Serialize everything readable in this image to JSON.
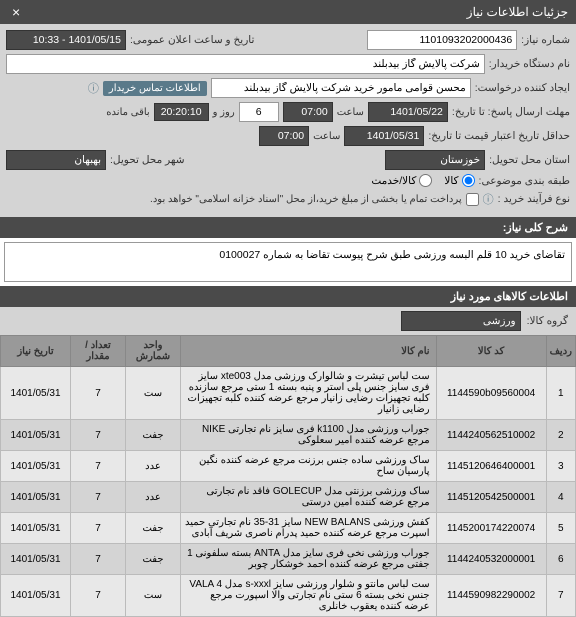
{
  "header": {
    "title": "جزئیات اطلاعات نیاز",
    "close": "×"
  },
  "fields": {
    "need_number_label": "شماره نیاز:",
    "need_number": "1101093202000436",
    "public_announce_label": "تاریخ و ساعت اعلان عمومی:",
    "public_announce": "1401/05/15 - 10:33",
    "buyer_name_label": "نام دستگاه خریدار:",
    "buyer_name": "شرکت پالایش گاز بیدبلند",
    "requester_label": "ایجاد کننده درخواست:",
    "requester": "محسن قوامی مامور خرید شرکت پالایش گاز بیدبلند",
    "buyer_contact_badge": "اطلاعات تماس خریدار",
    "response_deadline_label": "مهلت ارسال پاسخ: تا تاریخ:",
    "response_deadline_date": "1401/05/22",
    "time_label": "ساعت",
    "response_deadline_time": "07:00",
    "days": "6",
    "days_label": "روز و",
    "countdown": "20:20:10",
    "remaining_label": "باقی مانده",
    "validity_label": "حداقل تاریخ اعتبار قیمت تا تاریخ:",
    "validity_date": "1401/05/31",
    "validity_time": "07:00",
    "province_label": "استان محل تحویل:",
    "province": "خوزستان",
    "city_label": "شهر محل تحویل:",
    "city": "بهبهان",
    "topic_label": "طبقه بندی موضوعی:",
    "topic_goods": "کالا",
    "topic_service": "کالا/خدمت",
    "purchase_type_label": "نوع فرآیند خرید :",
    "purchase_type_note": "پرداخت تمام یا بخشی از مبلغ خرید،از محل \"اسناد خزانه اسلامی\" خواهد بود.",
    "info_icon": "ⓘ"
  },
  "description": {
    "header": "شرح کلی نیاز:",
    "text": "تقاضای خرید 10 قلم البسه ورزشی طبق شرح پیوست تقاضا به شماره 0100027"
  },
  "items_section": {
    "header": "اطلاعات کالاهای مورد نیاز",
    "group_label": "گروه کالا:",
    "group_value": "ورزشی"
  },
  "table": {
    "columns": {
      "idx": "ردیف",
      "code": "کد کالا",
      "name": "نام کالا",
      "unit": "واحد شمارش",
      "qty": "تعداد / مقدار",
      "date": "تاریخ نیاز"
    },
    "rows": [
      {
        "idx": "1",
        "code": "1144590b09560004",
        "name": "ست لباس تیشرت و شالوارک ورزشی مدل xte003 سایز فری سایز جنس پلی استر و پنبه بسته 1 ستی مرجع سازنده کلبه تجهیزات رضایی زانیار مرجع عرضه کننده کلبه تجهیزات رضایی زانیار",
        "unit": "ست",
        "qty": "7",
        "date": "1401/05/31"
      },
      {
        "idx": "2",
        "code": "1144240562510002",
        "name": "جوراب ورزشی مدل k1100 فری سایز نام تجارتی NIKE مرجع عرضه کننده امیر سعلوکی",
        "unit": "جفت",
        "qty": "7",
        "date": "1401/05/31"
      },
      {
        "idx": "3",
        "code": "1145120646400001",
        "name": "ساک ورزشی ساده جنس برزنت مرجع عرضه کننده نگین پارسیان ساح",
        "unit": "عدد",
        "qty": "7",
        "date": "1401/05/31"
      },
      {
        "idx": "4",
        "code": "1145120542500001",
        "name": "ساک ورزشی برزنتی مدل GOLECUP فاقد نام تجارتی مرجع عرضه کننده امین درستی",
        "unit": "عدد",
        "qty": "7",
        "date": "1401/05/31"
      },
      {
        "idx": "5",
        "code": "1145200174220074",
        "name": "کفش ورزشی NEW BALANS سایز 31-35 نام تجارتی حمید اسپرت مرجع عرضه کننده حمید پدرام ناصری شریف آبادی",
        "unit": "جفت",
        "qty": "7",
        "date": "1401/05/31"
      },
      {
        "idx": "6",
        "code": "1144240532000001",
        "name": "جوراب ورزشی نخی فری سایز مدل ANTA بسته سلفونی 1 جفتی مرجع عرضه کننده احمد خوشکار چوبر",
        "unit": "جفت",
        "qty": "7",
        "date": "1401/05/31"
      },
      {
        "idx": "7",
        "code": "1144590982290002",
        "name": "ست لباس مانتو و شلوار ورزشی سایز s-xxxl مدل VALA 4 جنس نخی بسته 6 ستی نام تجارتی والا اسپورت مرجع عرضه کننده یعقوب خانلری",
        "unit": "ست",
        "qty": "7",
        "date": "1401/05/31"
      }
    ]
  }
}
